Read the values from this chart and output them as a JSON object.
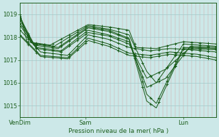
{
  "background_color": "#cce8e8",
  "grid_v_color": "#d4a8a8",
  "grid_h_color": "#a0c8c8",
  "line_color": "#1a5c1a",
  "ylim": [
    1014.5,
    1019.5
  ],
  "yticks": [
    1015,
    1016,
    1017,
    1018,
    1019
  ],
  "xlim": [
    0,
    144
  ],
  "xtick_positions": [
    0,
    48,
    120
  ],
  "xtick_labels": [
    "VenDim",
    "Sam",
    "Lun"
  ],
  "xlabel": "Pression niveau de la mer( hPa )",
  "series": [
    {
      "kx": [
        0,
        15,
        35,
        50,
        65,
        80,
        95,
        110,
        130,
        144
      ],
      "ky": [
        1018.05,
        1017.15,
        1017.05,
        1017.85,
        1017.6,
        1017.2,
        1017.1,
        1017.25,
        1017.15,
        1017.0
      ]
    },
    {
      "kx": [
        0,
        15,
        35,
        50,
        65,
        80,
        95,
        110,
        130,
        144
      ],
      "ky": [
        1018.1,
        1017.2,
        1017.1,
        1017.95,
        1017.7,
        1017.3,
        1017.2,
        1017.35,
        1017.25,
        1017.1
      ]
    },
    {
      "kx": [
        0,
        15,
        35,
        50,
        65,
        80,
        95,
        110,
        125,
        144
      ],
      "ky": [
        1018.3,
        1017.35,
        1017.2,
        1018.1,
        1017.9,
        1017.55,
        1017.4,
        1017.5,
        1017.45,
        1017.35
      ]
    },
    {
      "kx": [
        0,
        12,
        30,
        50,
        65,
        80,
        93,
        107,
        125,
        144
      ],
      "ky": [
        1018.5,
        1017.5,
        1017.35,
        1018.2,
        1018.05,
        1017.7,
        1016.2,
        1016.6,
        1017.55,
        1017.5
      ]
    },
    {
      "kx": [
        0,
        12,
        30,
        50,
        65,
        80,
        93,
        107,
        125,
        144
      ],
      "ky": [
        1018.6,
        1017.55,
        1017.4,
        1018.3,
        1018.1,
        1017.8,
        1015.8,
        1016.2,
        1017.6,
        1017.55
      ]
    },
    {
      "kx": [
        0,
        10,
        28,
        50,
        65,
        80,
        93,
        100,
        120,
        144
      ],
      "ky": [
        1018.75,
        1017.65,
        1017.5,
        1018.4,
        1018.25,
        1017.9,
        1015.2,
        1014.9,
        1017.5,
        1017.45
      ]
    },
    {
      "kx": [
        0,
        10,
        28,
        50,
        65,
        80,
        93,
        100,
        120,
        144
      ],
      "ky": [
        1018.85,
        1017.7,
        1017.55,
        1018.45,
        1018.3,
        1017.95,
        1015.5,
        1015.1,
        1017.55,
        1017.5
      ]
    },
    {
      "kx": [
        0,
        8,
        25,
        50,
        65,
        80,
        93,
        100,
        120,
        144
      ],
      "ky": [
        1018.9,
        1017.75,
        1017.6,
        1018.5,
        1018.35,
        1018.1,
        1016.5,
        1016.0,
        1017.7,
        1017.6
      ]
    },
    {
      "kx": [
        0,
        5,
        22,
        50,
        65,
        80,
        85,
        100,
        120,
        144
      ],
      "ky": [
        1019.0,
        1017.8,
        1017.65,
        1018.55,
        1018.45,
        1018.3,
        1017.55,
        1017.5,
        1017.8,
        1017.7
      ]
    }
  ]
}
